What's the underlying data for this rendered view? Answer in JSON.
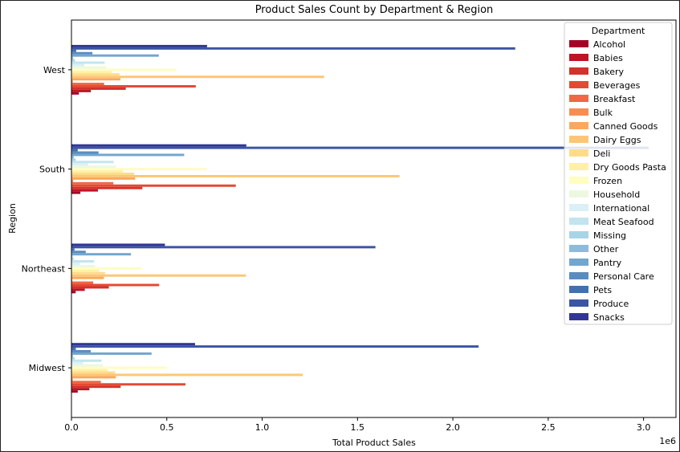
{
  "chart_data": {
    "type": "bar",
    "orientation": "horizontal",
    "title": "Product Sales Count by Department & Region",
    "xlabel": "Total Product Sales",
    "ylabel": "Region",
    "x_scale_label": "1e6",
    "xlim": [
      0,
      3.17
    ],
    "x_ticks": [
      "0.0",
      "0.5",
      "1.0",
      "1.5",
      "2.0",
      "2.5",
      "3.0"
    ],
    "categories": [
      "Midwest",
      "Northeast",
      "South",
      "West"
    ],
    "legend_title": "Department",
    "legend_position": "top-right",
    "grid": false,
    "series": [
      {
        "name": "Alcohol",
        "color": "#a50026",
        "values": [
          0.033,
          0.022,
          0.047,
          0.039
        ]
      },
      {
        "name": "Babies",
        "color": "#bb1526",
        "values": [
          0.094,
          0.07,
          0.139,
          0.102
        ]
      },
      {
        "name": "Bakery",
        "color": "#d3322c",
        "values": [
          0.258,
          0.196,
          0.372,
          0.285
        ]
      },
      {
        "name": "Beverages",
        "color": "#e34a33",
        "values": [
          0.598,
          0.46,
          0.862,
          0.652
        ]
      },
      {
        "name": "Breakfast",
        "color": "#f06744",
        "values": [
          0.154,
          0.114,
          0.22,
          0.171
        ]
      },
      {
        "name": "Bulk",
        "color": "#f88d51",
        "values": [
          0.007,
          0.005,
          0.009,
          0.007
        ]
      },
      {
        "name": "Canned Goods",
        "color": "#fba85f",
        "values": [
          0.233,
          0.17,
          0.334,
          0.257
        ]
      },
      {
        "name": "Dairy Eggs",
        "color": "#fdc676",
        "values": [
          1.213,
          0.915,
          1.72,
          1.325
        ]
      },
      {
        "name": "Deli",
        "color": "#fedc8c",
        "values": [
          0.229,
          0.176,
          0.329,
          0.252
        ]
      },
      {
        "name": "Dry Goods Pasta",
        "color": "#fff0a6",
        "values": [
          0.19,
          0.146,
          0.27,
          0.211
        ]
      },
      {
        "name": "Frozen",
        "color": "#fefec0",
        "values": [
          0.502,
          0.368,
          0.71,
          0.551
        ]
      },
      {
        "name": "Household",
        "color": "#edf8e0",
        "values": [
          0.165,
          0.124,
          0.234,
          0.181
        ]
      },
      {
        "name": "International",
        "color": "#dbf0f6",
        "values": [
          0.061,
          0.045,
          0.087,
          0.067
        ]
      },
      {
        "name": "Meat Seafood",
        "color": "#c3e4ef",
        "values": [
          0.158,
          0.119,
          0.221,
          0.174
        ]
      },
      {
        "name": "Missing",
        "color": "#a8d4e6",
        "values": [
          0.016,
          0.011,
          0.022,
          0.018
        ]
      },
      {
        "name": "Other",
        "color": "#8cbcda",
        "values": [
          0.008,
          0.006,
          0.012,
          0.009
        ]
      },
      {
        "name": "Pantry",
        "color": "#72a6ce",
        "values": [
          0.42,
          0.312,
          0.591,
          0.458
        ]
      },
      {
        "name": "Personal Care",
        "color": "#5a8cc0",
        "values": [
          0.101,
          0.075,
          0.142,
          0.11
        ]
      },
      {
        "name": "Pets",
        "color": "#4470b0",
        "values": [
          0.023,
          0.016,
          0.033,
          0.025
        ]
      },
      {
        "name": "Produce",
        "color": "#3b54a4",
        "values": [
          2.135,
          1.594,
          3.027,
          2.327
        ]
      },
      {
        "name": "Snacks",
        "color": "#313695",
        "values": [
          0.648,
          0.49,
          0.917,
          0.711
        ]
      }
    ]
  }
}
